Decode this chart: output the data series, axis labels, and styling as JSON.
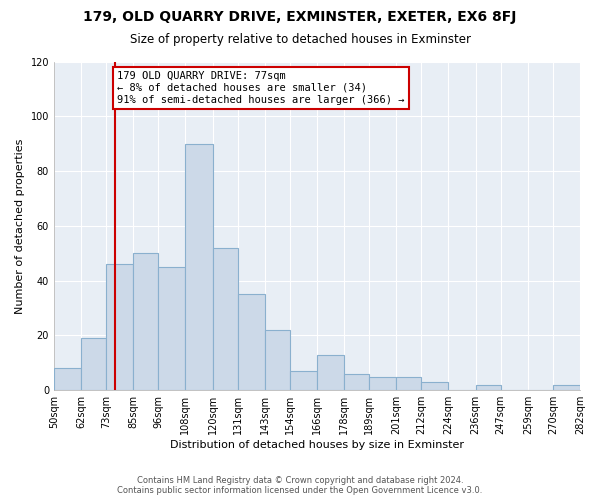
{
  "title": "179, OLD QUARRY DRIVE, EXMINSTER, EXETER, EX6 8FJ",
  "subtitle": "Size of property relative to detached houses in Exminster",
  "xlabel": "Distribution of detached houses by size in Exminster",
  "ylabel": "Number of detached properties",
  "bar_edges": [
    50,
    62,
    73,
    85,
    96,
    108,
    120,
    131,
    143,
    154,
    166,
    178,
    189,
    201,
    212,
    224,
    236,
    247,
    259,
    270,
    282
  ],
  "bar_heights": [
    8,
    19,
    46,
    50,
    45,
    90,
    52,
    35,
    22,
    7,
    13,
    6,
    5,
    5,
    3,
    0,
    2,
    0,
    0,
    2
  ],
  "bar_color": "#ccd9e8",
  "bar_edgecolor": "#8ab0ce",
  "vline_x": 77,
  "vline_color": "#cc0000",
  "ylim": [
    0,
    120
  ],
  "yticks": [
    0,
    20,
    40,
    60,
    80,
    100,
    120
  ],
  "annotation_title": "179 OLD QUARRY DRIVE: 77sqm",
  "annotation_line1": "← 8% of detached houses are smaller (34)",
  "annotation_line2": "91% of semi-detached houses are larger (366) →",
  "annotation_box_color": "#ffffff",
  "annotation_box_edgecolor": "#cc0000",
  "footer_line1": "Contains HM Land Registry data © Crown copyright and database right 2024.",
  "footer_line2": "Contains public sector information licensed under the Open Government Licence v3.0.",
  "tick_labels": [
    "50sqm",
    "62sqm",
    "73sqm",
    "85sqm",
    "96sqm",
    "108sqm",
    "120sqm",
    "131sqm",
    "143sqm",
    "154sqm",
    "166sqm",
    "178sqm",
    "189sqm",
    "201sqm",
    "212sqm",
    "224sqm",
    "236sqm",
    "247sqm",
    "259sqm",
    "270sqm",
    "282sqm"
  ],
  "bg_color": "#ffffff",
  "plot_bg_color": "#e8eef5",
  "grid_color": "#ffffff"
}
